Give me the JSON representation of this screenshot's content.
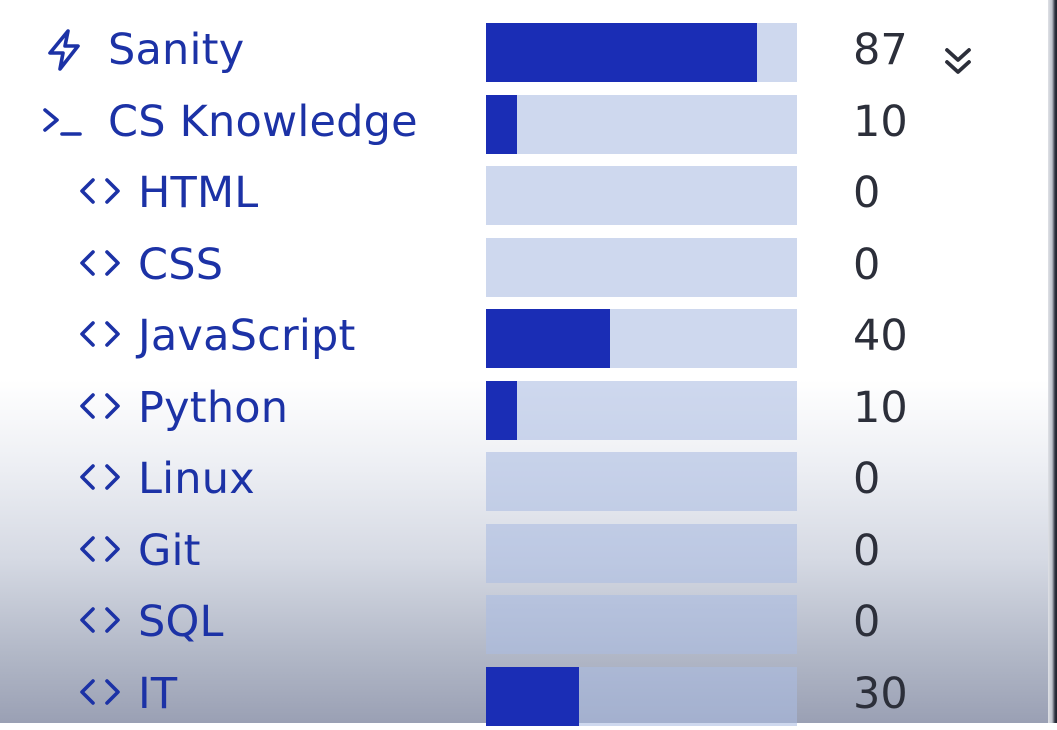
{
  "colors": {
    "accent": "#1c32a6",
    "bar_fill": "#1a2db5",
    "bar_track": "#cdd6ee",
    "value_text": "#2c2f3a"
  },
  "collapse_icon": "chevron-double-down-icon",
  "stats": [
    {
      "id": "sanity",
      "icon": "lightning-icon",
      "label": "Sanity",
      "value": "87",
      "level": 87,
      "indent": 0
    },
    {
      "id": "cs-knowledge",
      "icon": "terminal-icon",
      "label": "CS Knowledge",
      "value": "10",
      "level": 10,
      "indent": 0
    },
    {
      "id": "html",
      "icon": "code-icon",
      "label": "HTML",
      "value": "0",
      "level": 0,
      "indent": 1
    },
    {
      "id": "css",
      "icon": "code-icon",
      "label": "CSS",
      "value": "0",
      "level": 0,
      "indent": 1
    },
    {
      "id": "javascript",
      "icon": "code-icon",
      "label": "JavaScript",
      "value": "40",
      "level": 40,
      "indent": 1
    },
    {
      "id": "python",
      "icon": "code-icon",
      "label": "Python",
      "value": "10",
      "level": 10,
      "indent": 1
    },
    {
      "id": "linux",
      "icon": "code-icon",
      "label": "Linux",
      "value": "0",
      "level": 0,
      "indent": 1
    },
    {
      "id": "git",
      "icon": "code-icon",
      "label": "Git",
      "value": "0",
      "level": 0,
      "indent": 1
    },
    {
      "id": "sql",
      "icon": "code-icon",
      "label": "SQL",
      "value": "0",
      "level": 0,
      "indent": 1
    },
    {
      "id": "it",
      "icon": "code-icon",
      "label": "IT",
      "value": "30",
      "level": 30,
      "indent": 1
    }
  ]
}
